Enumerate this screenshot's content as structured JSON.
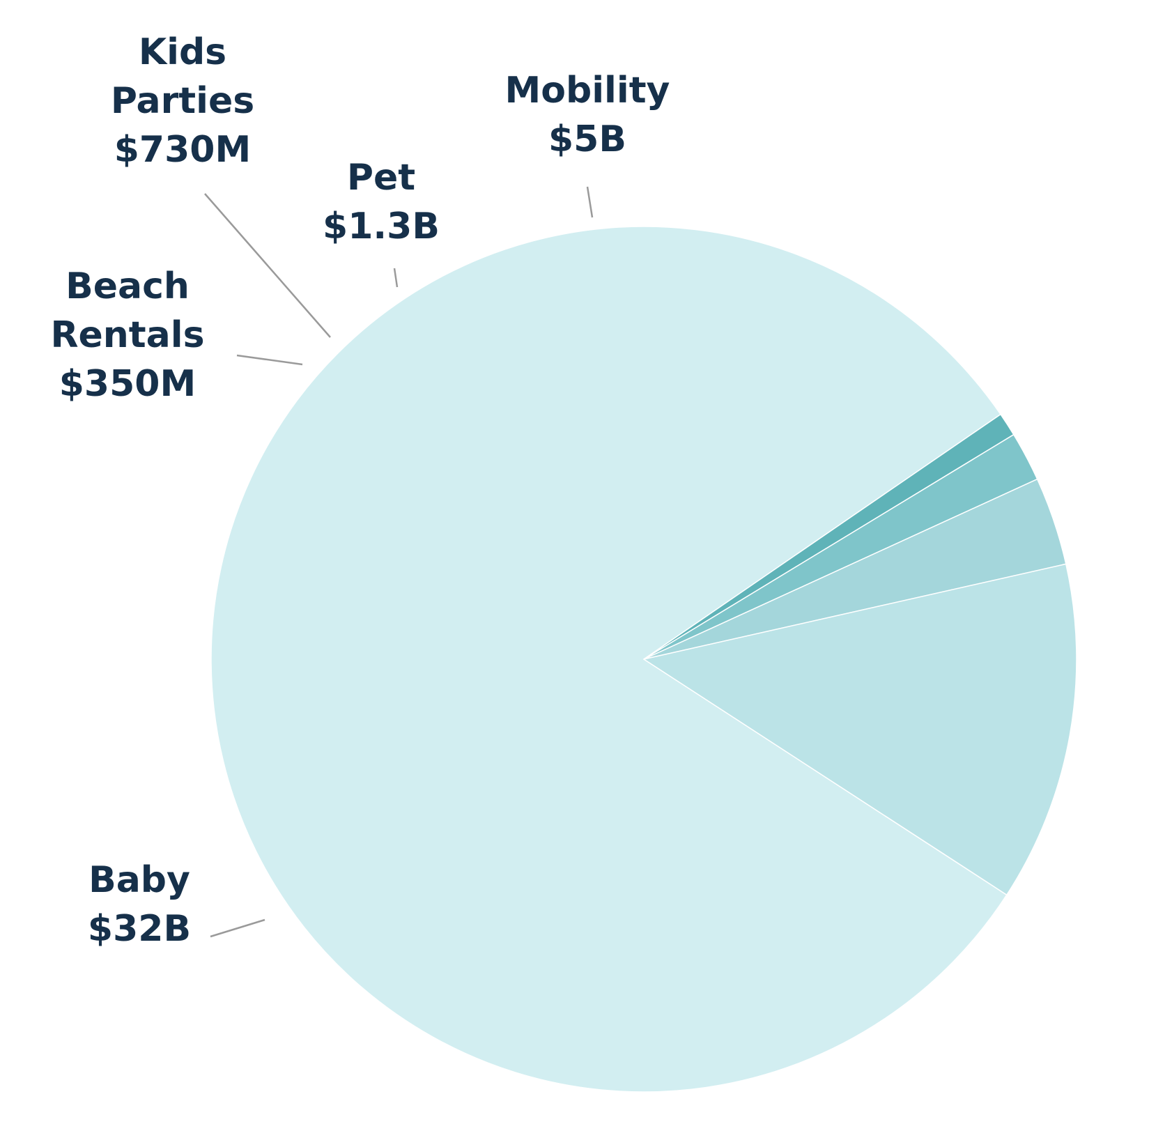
{
  "chart_data": {
    "type": "pie",
    "title": "",
    "units": "USD",
    "slices": [
      {
        "name": "Baby",
        "value": 32,
        "label_lines": [
          "Baby",
          "$32B"
        ],
        "color": "#d2eef1"
      },
      {
        "name": "Beach Rentals",
        "value": 0.35,
        "label_lines": [
          "Beach",
          "Rentals",
          "$350M"
        ],
        "color": "#5fb3b8"
      },
      {
        "name": "Kids Parties",
        "value": 0.73,
        "label_lines": [
          "Kids",
          "Parties",
          "$730M"
        ],
        "color": "#7fc5ca"
      },
      {
        "name": "Pet",
        "value": 1.3,
        "label_lines": [
          "Pet",
          "$1.3B"
        ],
        "color": "#a4d6db"
      },
      {
        "name": "Mobility",
        "value": 5,
        "label_lines": [
          "Mobility",
          "$5B"
        ],
        "color": "#bbe3e7"
      }
    ]
  }
}
